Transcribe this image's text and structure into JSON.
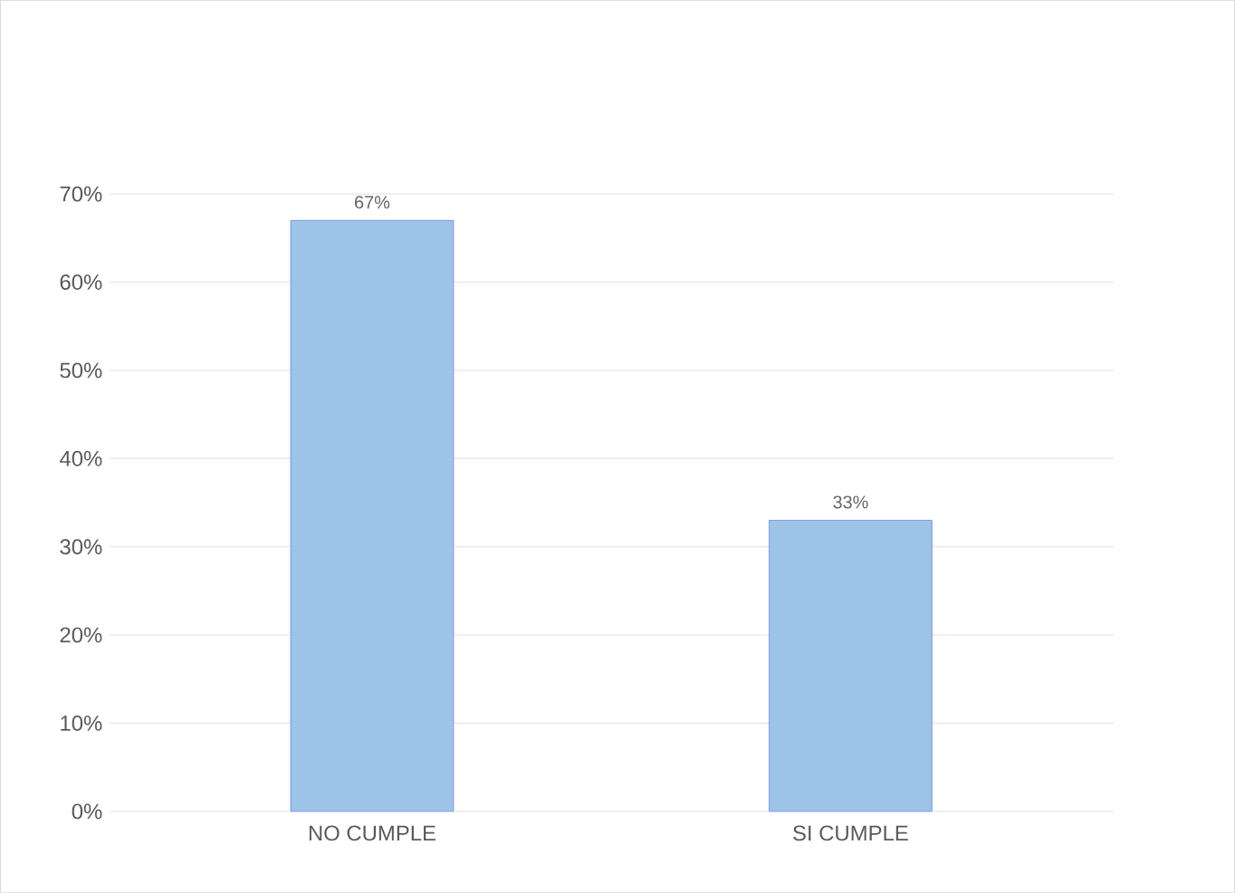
{
  "chart_data": {
    "type": "bar",
    "categories": [
      "NO CUMPLE",
      "SI CUMPLE"
    ],
    "values": [
      67,
      33
    ],
    "value_labels": [
      "67%",
      "33%"
    ],
    "color": "#9dc3e6",
    "ylim": [
      0,
      70
    ],
    "yticks": [
      {
        "value": 0,
        "label": "0%"
      },
      {
        "value": 10,
        "label": "10%"
      },
      {
        "value": 20,
        "label": "20%"
      },
      {
        "value": 30,
        "label": "30%"
      },
      {
        "value": 40,
        "label": "40%"
      },
      {
        "value": 50,
        "label": "50%"
      },
      {
        "value": 60,
        "label": "60%"
      },
      {
        "value": 70,
        "label": "70%"
      }
    ],
    "grid": "y"
  }
}
